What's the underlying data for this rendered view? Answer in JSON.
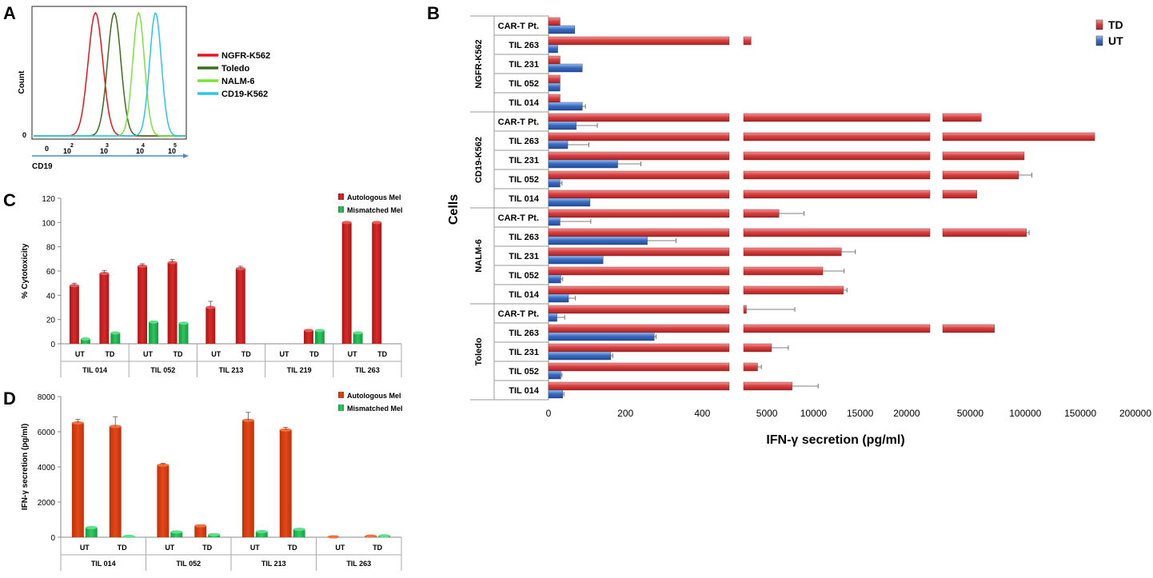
{
  "colors": {
    "td_red": "#d94040",
    "ut_blue": "#3a6cc4",
    "auto_red": "#c81e1e",
    "mis_green": "#1fae4e",
    "d_auto": "#d43a0e",
    "d_mis": "#18b04a",
    "ngfr": "#e8141c",
    "toledo": "#3a6e1c",
    "nalm": "#7ce23c",
    "cd19": "#28c8e8",
    "axis_blue": "#4a8ad4"
  },
  "chart_data": [
    {
      "panel": "A",
      "type": "line",
      "title": "",
      "xlabel": "CD19",
      "ylabel": "Count",
      "y_zero_label": "0",
      "x_tick_labels": [
        "0",
        "10",
        "2",
        "10",
        "3",
        "10",
        "4",
        "10",
        "5"
      ],
      "legend_position": "right",
      "series": [
        {
          "name": "NGFR-K562",
          "color_key": "ngfr",
          "peak_x": 2.85,
          "width": 0.35
        },
        {
          "name": "Toledo",
          "color_key": "toledo",
          "peak_x": 3.35,
          "width": 0.32
        },
        {
          "name": "NALM-6",
          "color_key": "nalm",
          "peak_x": 4.0,
          "width": 0.28
        },
        {
          "name": "CD19-K562",
          "color_key": "cd19",
          "peak_x": 4.45,
          "width": 0.28
        }
      ]
    },
    {
      "panel": "B",
      "type": "bar",
      "orientation": "horizontal",
      "ylabel": "Cells",
      "xlabel": "IFN-γ secretion (pg/ml)",
      "legend": [
        "TD",
        "UT"
      ],
      "legend_position": "top-right",
      "x_axis_segments": [
        {
          "range": [
            0,
            470
          ],
          "ticks": [
            0,
            200,
            400
          ]
        },
        {
          "range": [
            2500,
            22500
          ],
          "ticks": [
            5000,
            10000,
            15000,
            20000
          ]
        },
        {
          "range": [
            25000,
            200000
          ],
          "ticks": [
            50000,
            100000,
            150000,
            200000
          ]
        }
      ],
      "groups": [
        {
          "name": "NGFR-K562",
          "rows": [
            {
              "label": "CAR-T Pt.",
              "TD": 30,
              "UT": 68,
              "ut_err": 0
            },
            {
              "label": "TIL 263",
              "TD": 3300,
              "UT": 24,
              "ut_err": 0
            },
            {
              "label": "TIL 231",
              "TD": 30,
              "UT": 88,
              "ut_err": 0
            },
            {
              "label": "TIL 052",
              "TD": 30,
              "UT": 30,
              "ut_err": 0
            },
            {
              "label": "TIL 014",
              "TD": 30,
              "UT": 88,
              "ut_err": 8
            }
          ]
        },
        {
          "name": "CD19-K562",
          "rows": [
            {
              "label": "CAR-T Pt.",
              "TD": 60000,
              "UT": 72,
              "ut_err": 55
            },
            {
              "label": "TIL 263",
              "TD": 163000,
              "UT": 50,
              "ut_err": 55
            },
            {
              "label": "TIL 231",
              "TD": 99000,
              "UT": 180,
              "ut_err": 60
            },
            {
              "label": "TIL 052",
              "TD": 94000,
              "UT": 30,
              "ut_err": 5,
              "td_err": 12000
            },
            {
              "label": "TIL 014",
              "TD": 56000,
              "UT": 108,
              "ut_err": 0
            }
          ]
        },
        {
          "name": "NALM-6",
          "rows": [
            {
              "label": "CAR-T Pt.",
              "TD": 6300,
              "UT": 30,
              "ut_err": 80,
              "td_err": 2700
            },
            {
              "label": "TIL 263",
              "TD": 101000,
              "UT": 257,
              "ut_err": 75,
              "td_err": 2500
            },
            {
              "label": "TIL 231",
              "TD": 13000,
              "UT": 142,
              "ut_err": 0,
              "td_err": 1500
            },
            {
              "label": "TIL 052",
              "TD": 11000,
              "UT": 32,
              "ut_err": 5,
              "td_err": 2300
            },
            {
              "label": "TIL 014",
              "TD": 13200,
              "UT": 52,
              "ut_err": 18,
              "td_err": 400
            }
          ]
        },
        {
          "name": "Toledo",
          "rows": [
            {
              "label": "CAR-T Pt.",
              "TD": 2800,
              "UT": 22,
              "ut_err": 20,
              "td_err": 5200
            },
            {
              "label": "TIL 263",
              "TD": 72000,
              "UT": 275,
              "ut_err": 5
            },
            {
              "label": "TIL 231",
              "TD": 5500,
              "UT": 162,
              "ut_err": 5,
              "td_err": 1800
            },
            {
              "label": "TIL 052",
              "TD": 4000,
              "UT": 32,
              "ut_err": 3,
              "td_err": 400
            },
            {
              "label": "TIL 014",
              "TD": 7700,
              "UT": 37,
              "ut_err": 3,
              "td_err": 2800
            }
          ]
        }
      ]
    },
    {
      "panel": "C",
      "type": "bar",
      "ylabel": "% Cytotoxicity",
      "ylim": [
        0,
        120
      ],
      "yticks": [
        0,
        20,
        40,
        60,
        80,
        100,
        120
      ],
      "legend": [
        "Autologous Mel",
        "Mismatched Mel"
      ],
      "legend_position": "top-right",
      "groups": [
        {
          "name": "TIL 014",
          "bars": [
            {
              "label": "UT",
              "auto": 48,
              "auto_err": 2,
              "mis": 4,
              "mis_err": 0
            },
            {
              "label": "TD",
              "auto": 58,
              "auto_err": 2.5,
              "mis": 9,
              "mis_err": 0
            }
          ]
        },
        {
          "name": "TIL 052",
          "bars": [
            {
              "label": "UT",
              "auto": 64,
              "auto_err": 2,
              "mis": 18,
              "mis_err": 0
            },
            {
              "label": "TD",
              "auto": 67,
              "auto_err": 2.5,
              "mis": 17,
              "mis_err": 0
            }
          ]
        },
        {
          "name": "TIL 213",
          "bars": [
            {
              "label": "UT",
              "auto": 30,
              "auto_err": 5,
              "mis": 0,
              "mis_err": 0
            },
            {
              "label": "TD",
              "auto": 62,
              "auto_err": 2,
              "mis": 0,
              "mis_err": 0
            }
          ]
        },
        {
          "name": "TIL 219",
          "bars": [
            {
              "label": "UT",
              "auto": 0,
              "auto_err": 0,
              "mis": 0,
              "mis_err": 0
            },
            {
              "label": "TD",
              "auto": 11,
              "auto_err": 0,
              "mis": 11,
              "mis_err": 0
            }
          ]
        },
        {
          "name": "TIL 263",
          "bars": [
            {
              "label": "UT",
              "auto": 100,
              "auto_err": 0,
              "mis": 9,
              "mis_err": 0
            },
            {
              "label": "TD",
              "auto": 100,
              "auto_err": 0,
              "mis": 0,
              "mis_err": 0
            }
          ]
        }
      ]
    },
    {
      "panel": "D",
      "type": "bar",
      "ylabel": "IFN-γ secretion (pg/ml)",
      "ylim": [
        0,
        8000
      ],
      "yticks": [
        0,
        2000,
        4000,
        6000,
        8000
      ],
      "legend": [
        "Autologous Mel",
        "Mismatched Mel"
      ],
      "legend_position": "top-right",
      "groups": [
        {
          "name": "TIL 014",
          "bars": [
            {
              "label": "UT",
              "auto": 6500,
              "auto_err": 200,
              "mis": 550,
              "mis_err": 0
            },
            {
              "label": "TD",
              "auto": 6300,
              "auto_err": 550,
              "mis": 50,
              "mis_err": 0
            }
          ]
        },
        {
          "name": "TIL 052",
          "bars": [
            {
              "label": "UT",
              "auto": 4100,
              "auto_err": 100,
              "mis": 300,
              "mis_err": 0
            },
            {
              "label": "TD",
              "auto": 650,
              "auto_err": 0,
              "mis": 150,
              "mis_err": 0
            }
          ]
        },
        {
          "name": "TIL 213",
          "bars": [
            {
              "label": "UT",
              "auto": 6650,
              "auto_err": 450,
              "mis": 320,
              "mis_err": 0
            },
            {
              "label": "TD",
              "auto": 6100,
              "auto_err": 150,
              "mis": 450,
              "mis_err": 0
            }
          ]
        },
        {
          "name": "TIL 263",
          "bars": [
            {
              "label": "UT",
              "auto": 20,
              "auto_err": 0,
              "mis": 0,
              "mis_err": 0
            },
            {
              "label": "TD",
              "auto": 60,
              "auto_err": 0,
              "mis": 80,
              "mis_err": 0
            }
          ]
        }
      ]
    }
  ],
  "panel_labels": {
    "a": "A",
    "b": "B",
    "c": "C",
    "d": "D"
  }
}
